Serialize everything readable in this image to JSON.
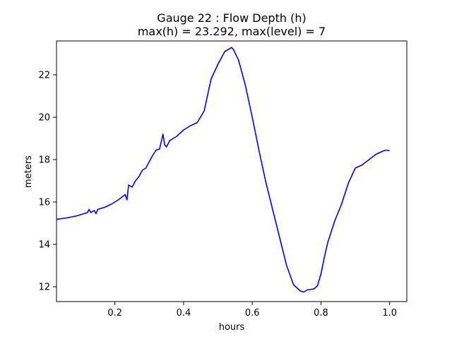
{
  "chart_data": {
    "type": "line",
    "title_line1": "Gauge 22 : Flow Depth (h)",
    "title_line2": "max(h) =  23.292,    max(level) = 7",
    "xlabel": "hours",
    "ylabel": "meters",
    "xlim": [
      0.03,
      1.05
    ],
    "ylim": [
      11.3,
      23.6
    ],
    "xticks": [
      0.2,
      0.4,
      0.6,
      0.8,
      1.0
    ],
    "xtick_labels": [
      "0.2",
      "0.4",
      "0.6",
      "0.8",
      "1.0"
    ],
    "yticks": [
      12,
      14,
      16,
      18,
      20,
      22
    ],
    "ytick_labels": [
      "12",
      "14",
      "16",
      "18",
      "20",
      "22"
    ],
    "grid": false,
    "line_color": "#0000ff",
    "series": [
      {
        "x": [
          0.03,
          0.06,
          0.09,
          0.12,
          0.125,
          0.13,
          0.14,
          0.145,
          0.15,
          0.17,
          0.19,
          0.21,
          0.23,
          0.235,
          0.24,
          0.245,
          0.25,
          0.26,
          0.27,
          0.28,
          0.29,
          0.3,
          0.31,
          0.32,
          0.33,
          0.34,
          0.345,
          0.35,
          0.36,
          0.37,
          0.38,
          0.4,
          0.42,
          0.44,
          0.46,
          0.48,
          0.5,
          0.52,
          0.54,
          0.545,
          0.56,
          0.58,
          0.6,
          0.62,
          0.64,
          0.66,
          0.68,
          0.7,
          0.72,
          0.74,
          0.75,
          0.76,
          0.78,
          0.79,
          0.8,
          0.81,
          0.82,
          0.84,
          0.86,
          0.88,
          0.9,
          0.92,
          0.94,
          0.96,
          0.98,
          0.99,
          1.0
        ],
        "y": [
          15.18,
          15.25,
          15.35,
          15.5,
          15.65,
          15.5,
          15.6,
          15.45,
          15.65,
          15.75,
          15.9,
          16.1,
          16.35,
          16.1,
          16.8,
          16.75,
          16.7,
          17.0,
          17.2,
          17.5,
          17.6,
          17.9,
          18.2,
          18.45,
          18.5,
          19.2,
          18.7,
          18.6,
          18.9,
          19.0,
          19.1,
          19.4,
          19.6,
          19.75,
          20.3,
          21.8,
          22.5,
          23.1,
          23.292,
          23.2,
          22.7,
          21.5,
          20.0,
          18.4,
          16.9,
          15.6,
          14.3,
          13.0,
          12.1,
          11.8,
          11.75,
          11.85,
          11.9,
          12.05,
          12.6,
          13.4,
          14.1,
          15.1,
          15.9,
          16.9,
          17.6,
          17.75,
          18.0,
          18.25,
          18.4,
          18.45,
          18.42
        ]
      }
    ]
  }
}
